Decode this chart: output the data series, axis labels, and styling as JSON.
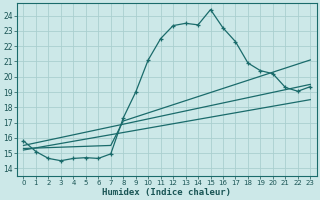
{
  "bg_color": "#cce8e8",
  "grid_color": "#aacfcf",
  "line_color": "#1a6b6b",
  "xlabel": "Humidex (Indice chaleur)",
  "xlim": [
    -0.5,
    23.5
  ],
  "ylim": [
    13.5,
    24.8
  ],
  "yticks": [
    14,
    15,
    16,
    17,
    18,
    19,
    20,
    21,
    22,
    23,
    24
  ],
  "xticks": [
    0,
    1,
    2,
    3,
    4,
    5,
    6,
    7,
    8,
    9,
    10,
    11,
    12,
    13,
    14,
    15,
    16,
    17,
    18,
    19,
    20,
    21,
    22,
    23
  ],
  "main_x": [
    0,
    1,
    2,
    3,
    4,
    5,
    6,
    7,
    8,
    9,
    10,
    11,
    12,
    13,
    14,
    15,
    16,
    17,
    18,
    19,
    20,
    21,
    22,
    23
  ],
  "main_y": [
    15.8,
    15.1,
    14.65,
    14.5,
    14.65,
    14.7,
    14.65,
    14.95,
    17.3,
    19.0,
    21.1,
    22.5,
    23.35,
    23.5,
    23.4,
    24.4,
    23.2,
    22.3,
    20.9,
    20.4,
    20.2,
    19.3,
    19.05,
    19.35
  ],
  "line1_x": [
    0,
    23
  ],
  "line1_y": [
    15.5,
    19.5
  ],
  "line2_x": [
    0,
    23
  ],
  "line2_y": [
    15.2,
    18.5
  ],
  "line3_x": [
    0,
    7,
    8,
    23
  ],
  "line3_y": [
    15.3,
    15.5,
    17.1,
    21.1
  ]
}
